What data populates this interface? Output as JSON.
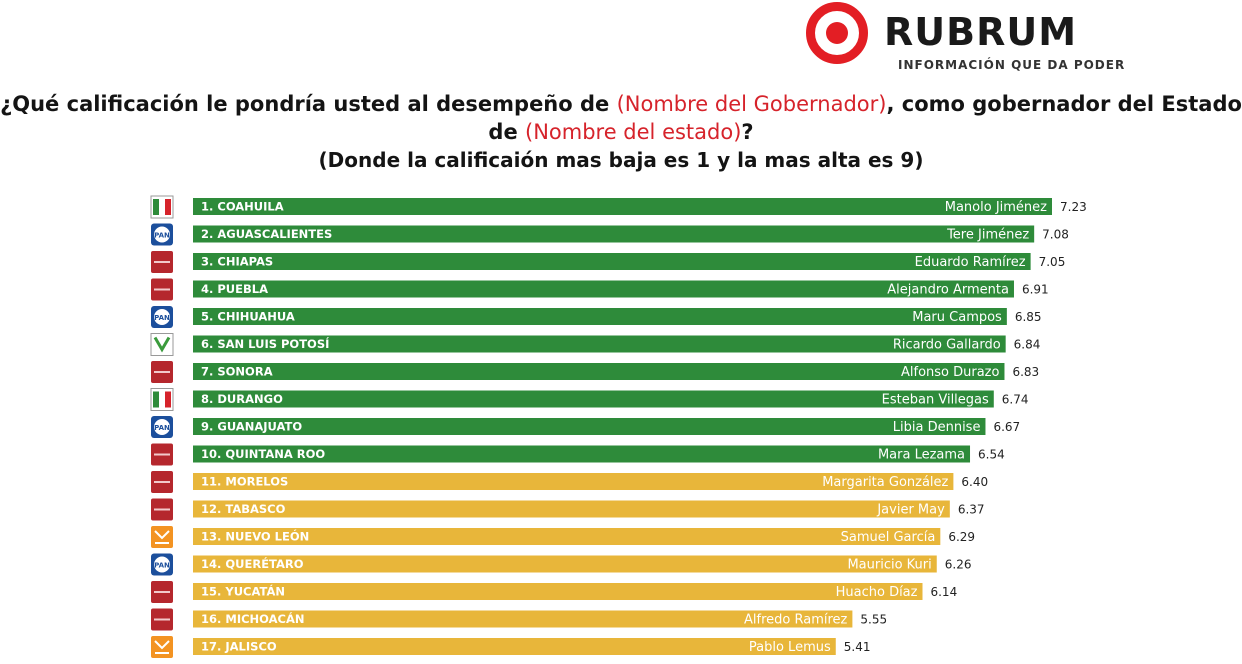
{
  "brand": {
    "name": "RUBRUM",
    "tagline": "INFORMACIÓN QUE DA PODER"
  },
  "heading": {
    "part1": "¿Qué calificación le pondría usted al desempeño de ",
    "red1": "(Nombre del Gobernador)",
    "part2": ", como gobernador del Estado de ",
    "red2": "(Nombre del estado)",
    "part3": "?",
    "subtitle": "(Donde la calificaión mas baja es 1 y la mas alta es 9)"
  },
  "colors": {
    "green": "#2e8b3a",
    "yellow": "#e8b63a",
    "morena": "#b5272d",
    "pan": "#1c4f9c",
    "pri": "#ffffff",
    "mc": "#f39322",
    "pvem": "#3a9b3c"
  },
  "chart_data": {
    "type": "bar",
    "orientation": "horizontal",
    "rows": [
      {
        "state": "1. COAHUILA",
        "governor": "Manolo Jiménez",
        "value": 7.23,
        "party": "PRI",
        "color": "green"
      },
      {
        "state": "2. AGUASCALIENTES",
        "governor": "Tere Jiménez",
        "value": 7.08,
        "party": "PAN",
        "color": "green"
      },
      {
        "state": "3. CHIAPAS",
        "governor": "Eduardo Ramírez",
        "value": 7.05,
        "party": "MORENA",
        "color": "green"
      },
      {
        "state": "4. PUEBLA",
        "governor": "Alejandro Armenta",
        "value": 6.91,
        "party": "MORENA",
        "color": "green"
      },
      {
        "state": "5. CHIHUAHUA",
        "governor": "Maru Campos",
        "value": 6.85,
        "party": "PAN",
        "color": "green"
      },
      {
        "state": "6. SAN LUIS POTOSÍ",
        "governor": "Ricardo Gallardo",
        "value": 6.84,
        "party": "PVEM",
        "color": "green"
      },
      {
        "state": "7. SONORA",
        "governor": "Alfonso Durazo",
        "value": 6.83,
        "party": "MORENA",
        "color": "green"
      },
      {
        "state": "8. DURANGO",
        "governor": "Esteban Villegas",
        "value": 6.74,
        "party": "PRI",
        "color": "green"
      },
      {
        "state": "9. GUANAJUATO",
        "governor": "Libia Dennise",
        "value": 6.67,
        "party": "PAN",
        "color": "green"
      },
      {
        "state": "10. QUINTANA ROO",
        "governor": "Mara Lezama",
        "value": 6.54,
        "party": "MORENA",
        "color": "green"
      },
      {
        "state": "11. MORELOS",
        "governor": "Margarita González",
        "value": 6.4,
        "party": "MORENA",
        "color": "yellow"
      },
      {
        "state": "12. TABASCO",
        "governor": "Javier May",
        "value": 6.37,
        "party": "MORENA",
        "color": "yellow"
      },
      {
        "state": "13. NUEVO LEÓN",
        "governor": "Samuel García",
        "value": 6.29,
        "party": "MC",
        "color": "yellow"
      },
      {
        "state": "14. QUERÉTARO",
        "governor": "Mauricio Kuri",
        "value": 6.26,
        "party": "PAN",
        "color": "yellow"
      },
      {
        "state": "15. YUCATÁN",
        "governor": "Huacho Díaz",
        "value": 6.14,
        "party": "MORENA",
        "color": "yellow"
      },
      {
        "state": "16. MICHOACÁN",
        "governor": "Alfredo Ramírez",
        "value": 5.55,
        "party": "MORENA",
        "color": "yellow"
      },
      {
        "state": "17. JALISCO",
        "governor": "Pablo Lemus",
        "value": 5.41,
        "party": "MC",
        "color": "yellow"
      }
    ],
    "xlim": [
      0,
      9
    ],
    "grid": false,
    "legend": "none"
  }
}
